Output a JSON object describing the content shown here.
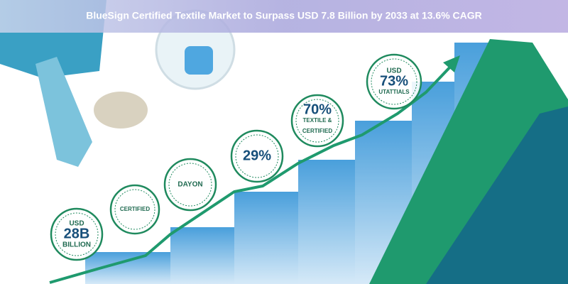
{
  "header": {
    "title": "BlueSign Certified Textile Market to Surpass USD 7.8 Billion by 2033 at 13.6% CAGR"
  },
  "badges": [
    {
      "lines": [
        "USD",
        "28B",
        "BILLION"
      ]
    },
    {
      "lines": [
        "CERTIFIED"
      ]
    },
    {
      "lines": [
        "DAYON"
      ]
    },
    {
      "lines": [
        "29%"
      ]
    },
    {
      "lines": [
        "70%",
        "TEXTILE &",
        "CERTIFIED"
      ]
    },
    {
      "lines": [
        "USD",
        "73%",
        "UTATTIALS"
      ]
    }
  ]
}
